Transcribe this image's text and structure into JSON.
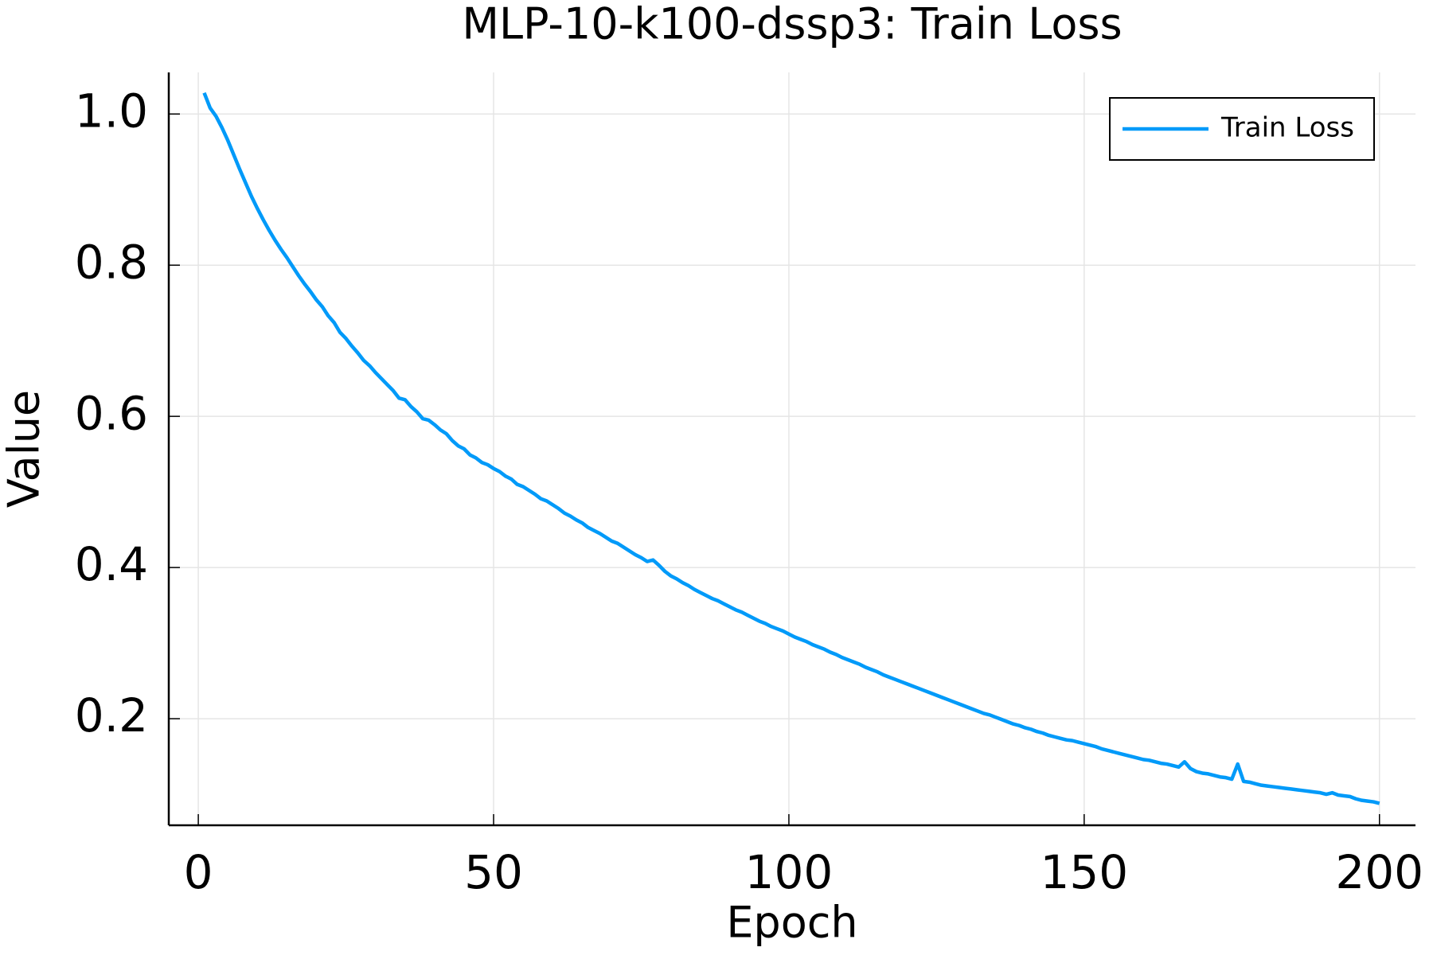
{
  "chart_data": {
    "type": "line",
    "title": "MLP-10-k100-dssp3: Train Loss",
    "x_label": "Epoch",
    "y_label": "Value",
    "xlim": [
      -5,
      206.1
    ],
    "ylim": [
      0.059,
      1.055
    ],
    "xticks": [
      0,
      50,
      100,
      150,
      200
    ],
    "yticks": [
      0.2,
      0.4,
      0.6,
      0.8,
      {
        "value": 1,
        "label": "1.0"
      }
    ],
    "grid": true,
    "legend_position": "top right",
    "x": [
      1,
      2,
      3,
      4,
      5,
      6,
      7,
      8,
      9,
      10,
      11,
      12,
      13,
      14,
      15,
      16,
      17,
      18,
      19,
      20,
      21,
      22,
      23,
      24,
      25,
      26,
      27,
      28,
      29,
      30,
      31,
      32,
      33,
      34,
      35,
      36,
      37,
      38,
      39,
      40,
      41,
      42,
      43,
      44,
      45,
      46,
      47,
      48,
      49,
      50,
      51,
      52,
      53,
      54,
      55,
      56,
      57,
      58,
      59,
      60,
      61,
      62,
      63,
      64,
      65,
      66,
      67,
      68,
      69,
      70,
      71,
      72,
      73,
      74,
      75,
      76,
      77,
      78,
      79,
      80,
      81,
      82,
      83,
      84,
      85,
      86,
      87,
      88,
      89,
      90,
      91,
      92,
      93,
      94,
      95,
      96,
      97,
      98,
      99,
      100,
      101,
      102,
      103,
      104,
      105,
      106,
      107,
      108,
      109,
      110,
      111,
      112,
      113,
      114,
      115,
      116,
      117,
      118,
      119,
      120,
      121,
      122,
      123,
      124,
      125,
      126,
      127,
      128,
      129,
      130,
      131,
      132,
      133,
      134,
      135,
      136,
      137,
      138,
      139,
      140,
      141,
      142,
      143,
      144,
      145,
      146,
      147,
      148,
      149,
      150,
      151,
      152,
      153,
      154,
      155,
      156,
      157,
      158,
      159,
      160,
      161,
      162,
      163,
      164,
      165,
      166,
      167,
      168,
      169,
      170,
      171,
      172,
      173,
      174,
      175,
      176,
      177,
      178,
      179,
      180,
      181,
      182,
      183,
      184,
      185,
      186,
      187,
      188,
      189,
      190,
      191,
      192,
      193,
      194,
      195,
      196,
      197,
      198,
      199,
      200
    ],
    "series": [
      {
        "name": "Train Loss",
        "color": "#009af9",
        "values": [
          1.028,
          1.008,
          0.997,
          0.982,
          0.965,
          0.946,
          0.927,
          0.909,
          0.891,
          0.875,
          0.86,
          0.846,
          0.833,
          0.821,
          0.81,
          0.798,
          0.786,
          0.775,
          0.765,
          0.754,
          0.745,
          0.733,
          0.724,
          0.711,
          0.703,
          0.693,
          0.684,
          0.674,
          0.667,
          0.658,
          0.65,
          0.642,
          0.634,
          0.624,
          0.622,
          0.613,
          0.606,
          0.597,
          0.595,
          0.589,
          0.582,
          0.577,
          0.568,
          0.561,
          0.557,
          0.549,
          0.545,
          0.539,
          0.536,
          0.531,
          0.527,
          0.521,
          0.517,
          0.51,
          0.507,
          0.502,
          0.497,
          0.491,
          0.488,
          0.483,
          0.478,
          0.472,
          0.468,
          0.463,
          0.459,
          0.453,
          0.449,
          0.445,
          0.44,
          0.435,
          0.432,
          0.427,
          0.422,
          0.417,
          0.413,
          0.408,
          0.41,
          0.403,
          0.395,
          0.389,
          0.385,
          0.38,
          0.376,
          0.371,
          0.367,
          0.363,
          0.359,
          0.356,
          0.352,
          0.348,
          0.344,
          0.341,
          0.337,
          0.333,
          0.329,
          0.326,
          0.322,
          0.319,
          0.316,
          0.312,
          0.308,
          0.305,
          0.302,
          0.298,
          0.295,
          0.292,
          0.288,
          0.285,
          0.281,
          0.278,
          0.275,
          0.272,
          0.268,
          0.265,
          0.262,
          0.258,
          0.255,
          0.252,
          0.249,
          0.246,
          0.243,
          0.24,
          0.237,
          0.234,
          0.231,
          0.228,
          0.225,
          0.222,
          0.219,
          0.216,
          0.213,
          0.21,
          0.207,
          0.205,
          0.202,
          0.199,
          0.196,
          0.193,
          0.191,
          0.188,
          0.186,
          0.183,
          0.181,
          0.178,
          0.176,
          0.174,
          0.172,
          0.171,
          0.169,
          0.167,
          0.165,
          0.163,
          0.16,
          0.158,
          0.156,
          0.154,
          0.152,
          0.15,
          0.148,
          0.146,
          0.145,
          0.143,
          0.141,
          0.14,
          0.138,
          0.136,
          0.143,
          0.134,
          0.13,
          0.128,
          0.127,
          0.125,
          0.123,
          0.122,
          0.12,
          0.14,
          0.117,
          0.116,
          0.114,
          0.112,
          0.111,
          0.11,
          0.109,
          0.108,
          0.107,
          0.106,
          0.105,
          0.104,
          0.103,
          0.102,
          0.1,
          0.102,
          0.099,
          0.098,
          0.097,
          0.094,
          0.092,
          0.091,
          0.09,
          0.088
        ]
      }
    ]
  }
}
